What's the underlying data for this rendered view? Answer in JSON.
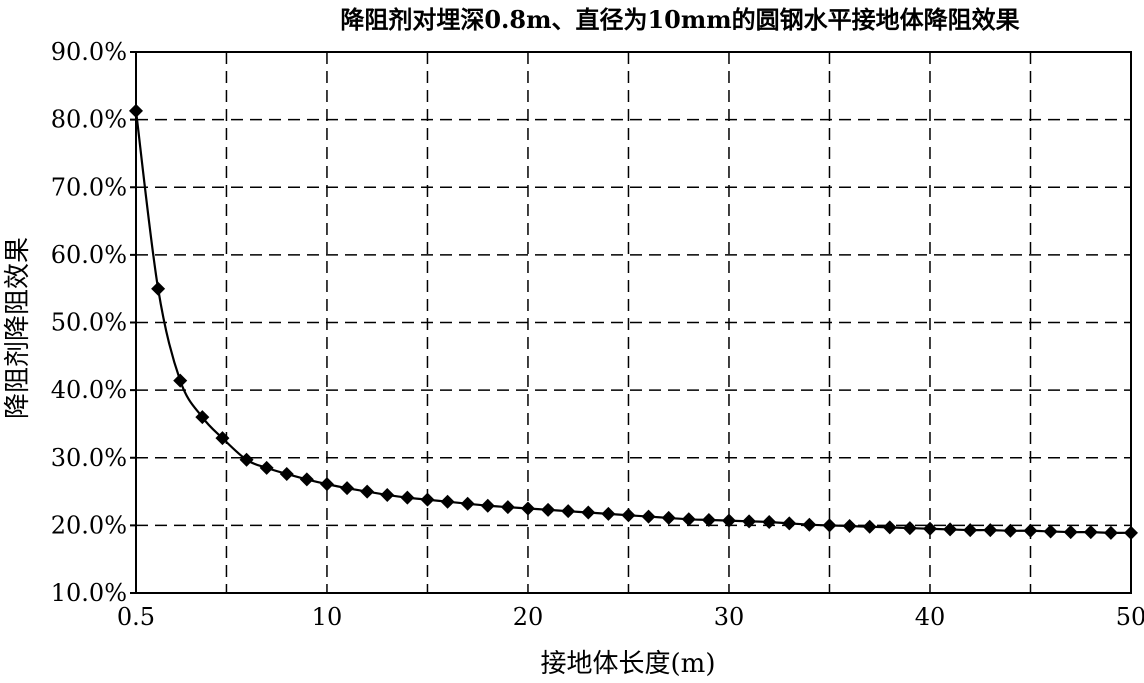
{
  "chart_data": {
    "type": "line",
    "title": "降阻剂对埋深0.8m、直径为10mm的圆钢水平接地体降阻效果",
    "xlabel": "接地体长度(m)",
    "ylabel": "降阻剂降阻效果",
    "xlim": [
      0.5,
      50
    ],
    "ylim": [
      10.0,
      90.0
    ],
    "x_ticks": [
      {
        "value": 0.5,
        "label": "0.5"
      },
      {
        "value": 10,
        "label": "10"
      },
      {
        "value": 20,
        "label": "20"
      },
      {
        "value": 30,
        "label": "30"
      },
      {
        "value": 40,
        "label": "40"
      },
      {
        "value": 50,
        "label": "50"
      }
    ],
    "x_grid": [
      5,
      10,
      15,
      20,
      25,
      30,
      35,
      40,
      45
    ],
    "y_ticks": [
      {
        "value": 10,
        "label": "10.0%"
      },
      {
        "value": 20,
        "label": "20.0%"
      },
      {
        "value": 30,
        "label": "30.0%"
      },
      {
        "value": 40,
        "label": "40.0%"
      },
      {
        "value": 50,
        "label": "50.0%"
      },
      {
        "value": 60,
        "label": "60.0%"
      },
      {
        "value": 70,
        "label": "70.0%"
      },
      {
        "value": 80,
        "label": "80.0%"
      },
      {
        "value": 90,
        "label": "90.0%"
      }
    ],
    "grid": true,
    "grid_style": "dashed",
    "marker": "diamond",
    "line_color": "#000000",
    "series": [
      {
        "x": [
          0.5,
          1.6,
          2.7,
          3.8,
          4.8,
          6,
          7,
          8,
          9,
          10,
          11,
          12,
          13,
          14,
          15,
          16,
          17,
          18,
          19,
          20,
          21,
          22,
          23,
          24,
          25,
          26,
          27,
          28,
          29,
          30,
          31,
          32,
          33,
          34,
          35,
          36,
          37,
          38,
          39,
          40,
          41,
          42,
          43,
          44,
          45,
          46,
          47,
          48,
          49,
          50
        ],
        "y": [
          81.3,
          55.0,
          41.4,
          36.0,
          32.9,
          29.7,
          28.5,
          27.6,
          26.8,
          26.1,
          25.5,
          25.0,
          24.5,
          24.1,
          23.8,
          23.5,
          23.2,
          22.9,
          22.7,
          22.5,
          22.3,
          22.1,
          21.9,
          21.7,
          21.5,
          21.3,
          21.1,
          20.9,
          20.8,
          20.7,
          20.6,
          20.5,
          20.3,
          20.1,
          20.0,
          19.9,
          19.8,
          19.7,
          19.6,
          19.5,
          19.4,
          19.3,
          19.3,
          19.2,
          19.2,
          19.1,
          19.0,
          19.0,
          18.9,
          18.9
        ]
      }
    ]
  }
}
